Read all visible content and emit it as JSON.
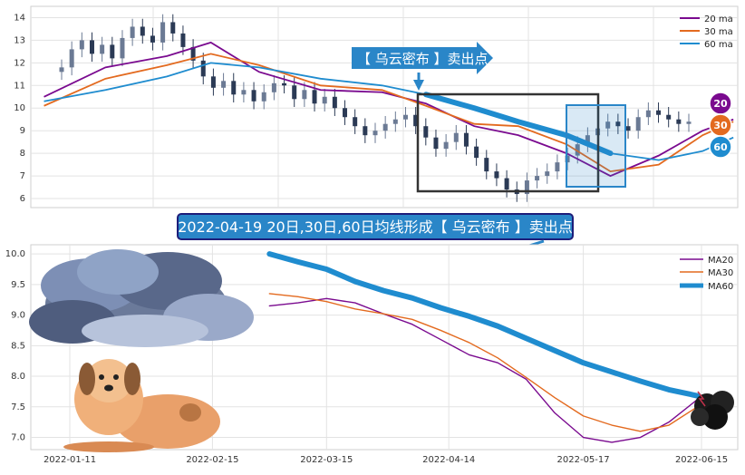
{
  "top_chart": {
    "callout_sell": "【 乌云密布 】卖出点",
    "badges": [
      "20",
      "30",
      "60"
    ],
    "colors": {
      "ma20": "#7a0a8f",
      "ma30": "#e36a1f",
      "ma60": "#1f8ccf",
      "candle": "#2b3a55",
      "frame": "#333333",
      "highlight": "#2a86c8"
    }
  },
  "banner": {
    "text": "2022-04-19 20日,30日,60日均线形成【 乌云密布 】卖出点"
  },
  "chart_data": [
    {
      "type": "line",
      "name": "price-with-moving-averages",
      "y_ticks": [
        6,
        7,
        8,
        9,
        10,
        11,
        12,
        13,
        14
      ],
      "ylim": [
        5.6,
        14.5
      ],
      "x_range": [
        "2022-01-08",
        "2022-06-18"
      ],
      "grid": true,
      "legend_position": "top-right",
      "legend": [
        "20 ma",
        "30 ma",
        "60 ma"
      ],
      "candles_close": [
        11.8,
        12.6,
        13.0,
        12.4,
        12.8,
        12.2,
        13.1,
        13.6,
        13.2,
        12.9,
        13.8,
        13.3,
        12.7,
        12.1,
        11.4,
        10.9,
        11.2,
        10.6,
        10.8,
        10.3,
        10.7,
        11.1,
        11.0,
        10.4,
        10.8,
        10.2,
        10.5,
        10.0,
        9.6,
        9.2,
        8.8,
        9.0,
        9.3,
        9.5,
        9.7,
        9.2,
        8.7,
        8.2,
        8.5,
        8.9,
        8.3,
        7.8,
        7.2,
        6.9,
        6.4,
        6.2,
        6.8,
        7.0,
        7.2,
        7.6,
        7.9,
        8.4,
        8.8,
        9.1,
        9.4,
        9.2,
        9.0,
        9.6,
        9.9,
        9.7,
        9.5,
        9.3,
        9.4
      ],
      "series": [
        {
          "name": "20 ma",
          "x": [
            "2022-01-11",
            "2022-01-25",
            "2022-02-08",
            "2022-02-18",
            "2022-03-01",
            "2022-03-15",
            "2022-03-29",
            "2022-04-08",
            "2022-04-19",
            "2022-04-29",
            "2022-05-10",
            "2022-05-20",
            "2022-05-31",
            "2022-06-10",
            "2022-06-17"
          ],
          "y": [
            10.5,
            11.8,
            12.3,
            12.9,
            11.6,
            10.8,
            10.7,
            10.2,
            9.2,
            8.8,
            8.0,
            7.0,
            7.9,
            9.0,
            9.5
          ]
        },
        {
          "name": "30 ma",
          "x": [
            "2022-01-11",
            "2022-01-25",
            "2022-02-08",
            "2022-02-18",
            "2022-03-01",
            "2022-03-15",
            "2022-03-29",
            "2022-04-08",
            "2022-04-19",
            "2022-04-29",
            "2022-05-10",
            "2022-05-20",
            "2022-05-31",
            "2022-06-10",
            "2022-06-17"
          ],
          "y": [
            10.1,
            11.3,
            11.9,
            12.4,
            11.9,
            11.0,
            10.8,
            10.1,
            9.3,
            9.2,
            8.4,
            7.2,
            7.5,
            8.8,
            9.4
          ]
        },
        {
          "name": "60 ma",
          "x": [
            "2022-01-11",
            "2022-01-25",
            "2022-02-08",
            "2022-02-18",
            "2022-03-01",
            "2022-03-15",
            "2022-03-29",
            "2022-04-08",
            "2022-04-19",
            "2022-04-29",
            "2022-05-10",
            "2022-05-20",
            "2022-05-31",
            "2022-06-10",
            "2022-06-17"
          ],
          "y": [
            10.3,
            10.8,
            11.4,
            12.0,
            11.8,
            11.3,
            11.0,
            10.6,
            10.0,
            9.4,
            8.8,
            8.0,
            7.7,
            8.1,
            8.7
          ]
        }
      ]
    },
    {
      "type": "line",
      "name": "moving-averages-detail",
      "x_ticks": [
        "2022-01-11",
        "2022-02-15",
        "2022-03-15",
        "2022-04-14",
        "2022-05-17",
        "2022-06-15"
      ],
      "y_ticks": [
        7.0,
        7.5,
        8.0,
        8.5,
        9.0,
        9.5,
        10.0
      ],
      "ylim": [
        6.8,
        10.15
      ],
      "grid": true,
      "legend_position": "top-right",
      "legend": [
        "MA20",
        "MA30",
        "MA60"
      ],
      "series": [
        {
          "name": "MA20",
          "x": [
            "2022-03-01",
            "2022-03-08",
            "2022-03-15",
            "2022-03-22",
            "2022-03-29",
            "2022-04-05",
            "2022-04-12",
            "2022-04-19",
            "2022-04-26",
            "2022-05-03",
            "2022-05-10",
            "2022-05-17",
            "2022-05-24",
            "2022-05-31",
            "2022-06-07",
            "2022-06-14"
          ],
          "y": [
            9.15,
            9.2,
            9.27,
            9.2,
            9.02,
            8.85,
            8.6,
            8.35,
            8.22,
            7.95,
            7.4,
            7.0,
            6.92,
            7.0,
            7.25,
            7.62
          ]
        },
        {
          "name": "MA30",
          "x": [
            "2022-03-01",
            "2022-03-08",
            "2022-03-15",
            "2022-03-22",
            "2022-03-29",
            "2022-04-05",
            "2022-04-12",
            "2022-04-19",
            "2022-04-26",
            "2022-05-03",
            "2022-05-10",
            "2022-05-17",
            "2022-05-24",
            "2022-05-31",
            "2022-06-07",
            "2022-06-14"
          ],
          "y": [
            9.35,
            9.3,
            9.22,
            9.1,
            9.02,
            8.93,
            8.75,
            8.55,
            8.3,
            7.98,
            7.65,
            7.35,
            7.2,
            7.1,
            7.2,
            7.5
          ]
        },
        {
          "name": "MA60",
          "x": [
            "2022-03-01",
            "2022-03-08",
            "2022-03-15",
            "2022-03-22",
            "2022-03-29",
            "2022-04-05",
            "2022-04-12",
            "2022-04-19",
            "2022-04-26",
            "2022-05-03",
            "2022-05-10",
            "2022-05-17",
            "2022-05-24",
            "2022-05-31",
            "2022-06-07",
            "2022-06-14"
          ],
          "y": [
            10.0,
            9.87,
            9.75,
            9.55,
            9.4,
            9.28,
            9.12,
            8.98,
            8.82,
            8.62,
            8.42,
            8.22,
            8.07,
            7.92,
            7.78,
            7.68
          ]
        }
      ]
    }
  ]
}
